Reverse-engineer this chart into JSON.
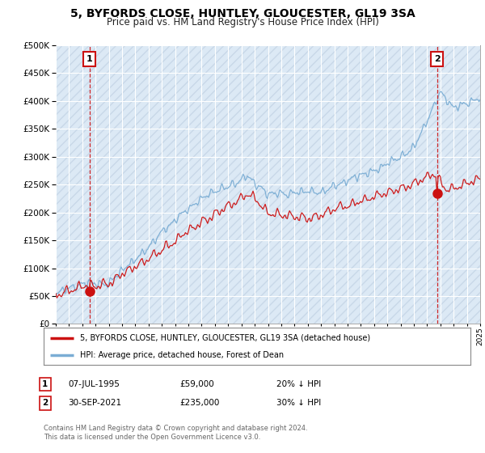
{
  "title": "5, BYFORDS CLOSE, HUNTLEY, GLOUCESTER, GL19 3SA",
  "subtitle": "Price paid vs. HM Land Registry's House Price Index (HPI)",
  "ylim": [
    0,
    500000
  ],
  "yticks": [
    0,
    50000,
    100000,
    150000,
    200000,
    250000,
    300000,
    350000,
    400000,
    450000,
    500000
  ],
  "hpi_color": "#7aadd4",
  "price_color": "#cc1111",
  "t1_year": 1995.54,
  "t2_year": 2021.75,
  "p1": 59000,
  "p2": 235000,
  "legend_line1": "5, BYFORDS CLOSE, HUNTLEY, GLOUCESTER, GL19 3SA (detached house)",
  "legend_line2": "HPI: Average price, detached house, Forest of Dean",
  "footnote": "Contains HM Land Registry data © Crown copyright and database right 2024.\nThis data is licensed under the Open Government Licence v3.0.",
  "bg_color": "#dce9f5",
  "grid_color": "#ffffff",
  "hatch_color": "#c8d8e8"
}
